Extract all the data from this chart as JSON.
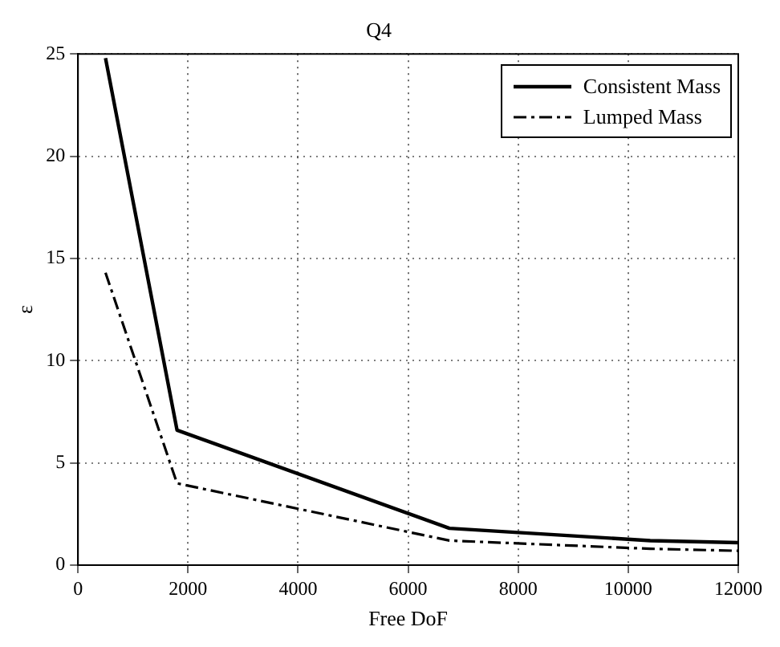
{
  "chart_data": {
    "type": "line",
    "title": "Q4",
    "xlabel": "Free DoF",
    "ylabel": "ε",
    "xlim": [
      0,
      12000
    ],
    "xticks": [
      0,
      2000,
      4000,
      6000,
      8000,
      10000,
      12000
    ],
    "ylim": [
      0,
      25
    ],
    "yticks": [
      0,
      5,
      10,
      15,
      20,
      25
    ],
    "grid": true,
    "legend": "top right",
    "marker": "none",
    "series": [
      {
        "name": "Consistent Mass",
        "color": "#000000",
        "line_style": "solid",
        "x": [
          500,
          1800,
          6750,
          10400,
          12000
        ],
        "values": [
          24.8,
          6.6,
          1.8,
          1.2,
          1.1
        ]
      },
      {
        "name": "Lumped Mass",
        "color": "#000000",
        "line_style": "dashed",
        "x": [
          500,
          1800,
          6750,
          10400,
          12000
        ],
        "values": [
          14.3,
          4.0,
          1.2,
          0.8,
          0.7
        ]
      }
    ]
  }
}
